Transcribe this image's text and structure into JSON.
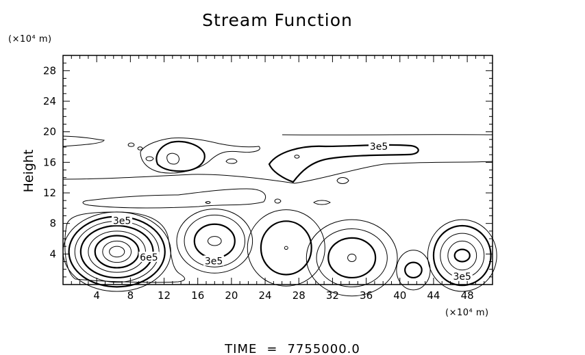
{
  "chart_data": {
    "type": "contour",
    "title": "Stream Function",
    "xlabel": "",
    "ylabel": "Height",
    "x_unit": "(×10⁴ m)",
    "y_unit": "(×10⁴ m)",
    "xlim": [
      0,
      51
    ],
    "ylim": [
      0,
      30
    ],
    "x_ticks": [
      "4",
      "8",
      "12",
      "16",
      "20",
      "24",
      "28",
      "32",
      "36",
      "40",
      "44",
      "48"
    ],
    "y_ticks": [
      "4",
      "8",
      "12",
      "16",
      "20",
      "24",
      "28"
    ],
    "contour_labels": [
      {
        "text": "3e5",
        "x": 7.0,
        "y": 8.3
      },
      {
        "text": "6e5",
        "x": 10.2,
        "y": 3.5
      },
      {
        "text": "3e5",
        "x": 17.9,
        "y": 3.0
      },
      {
        "text": "3e5",
        "x": 37.5,
        "y": 18.0
      },
      {
        "text": "3e5",
        "x": 47.4,
        "y": 1.0
      }
    ],
    "cells": [
      {
        "name": "cell-1",
        "cx": 6.4,
        "cy": 4.3,
        "rings": [
          [
            0.9,
            0.7
          ],
          [
            1.7,
            1.4
          ],
          [
            2.6,
            2.1
          ],
          [
            3.4,
            2.7
          ],
          [
            4.3,
            3.4
          ],
          [
            5.0,
            4.0
          ],
          [
            5.7,
            4.6
          ],
          [
            6.4,
            5.2
          ]
        ],
        "thick": [
          2,
          4,
          6
        ]
      },
      {
        "name": "cell-2",
        "cx": 18.0,
        "cy": 5.7,
        "rings": [
          [
            0.8,
            0.6
          ],
          [
            2.4,
            2.2
          ],
          [
            3.6,
            3.4
          ],
          [
            4.5,
            4.2
          ]
        ],
        "thick": [
          1
        ]
      },
      {
        "name": "cell-3",
        "cx": 26.5,
        "cy": 4.8,
        "rings": [
          [
            0.2,
            0.2
          ],
          [
            3.0,
            3.5
          ],
          [
            4.6,
            5.0
          ]
        ],
        "thick": [
          1
        ]
      },
      {
        "name": "cell-4",
        "cx": 34.3,
        "cy": 3.5,
        "rings": [
          [
            0.5,
            0.5
          ],
          [
            2.8,
            2.6
          ],
          [
            4.2,
            3.8
          ],
          [
            5.4,
            5.0
          ]
        ],
        "thick": [
          1
        ]
      },
      {
        "name": "cell-5",
        "cx": 41.6,
        "cy": 1.9,
        "rings": [
          [
            1.0,
            1.0
          ],
          [
            2.0,
            2.6
          ]
        ],
        "thick": [
          0
        ]
      },
      {
        "name": "cell-6",
        "cx": 47.4,
        "cy": 3.8,
        "rings": [
          [
            0.9,
            0.8
          ],
          [
            1.7,
            1.9
          ],
          [
            2.6,
            2.9
          ],
          [
            3.4,
            3.9
          ],
          [
            4.1,
            4.7
          ]
        ],
        "thick": [
          0,
          3
        ]
      }
    ]
  },
  "footer": {
    "time_label": "TIME",
    "equals": "=",
    "time_value": "7755000.0"
  }
}
